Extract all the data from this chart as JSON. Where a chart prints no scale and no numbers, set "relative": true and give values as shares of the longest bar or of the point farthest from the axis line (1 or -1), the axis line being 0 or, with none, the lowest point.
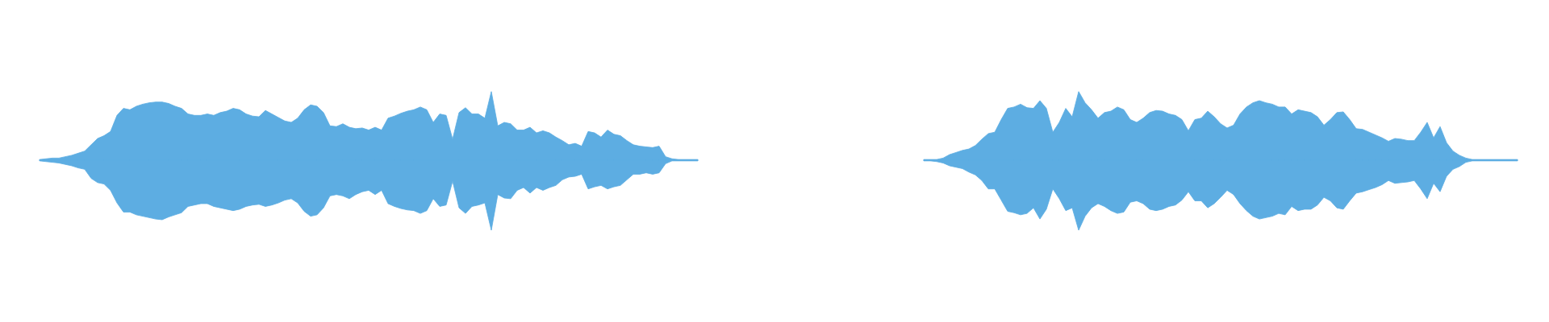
{
  "chart_data": [
    {
      "type": "area",
      "relative": true,
      "categories": [
        null,
        null,
        null,
        null,
        null,
        null,
        null,
        null,
        null,
        null,
        null,
        null,
        null,
        null,
        null,
        null,
        null,
        null,
        null,
        null,
        null,
        null,
        null,
        null,
        null,
        null,
        null,
        null,
        null,
        null,
        null,
        null,
        null,
        null,
        null,
        null,
        null,
        null,
        null,
        null,
        null,
        null,
        null,
        null,
        null,
        null,
        null,
        null,
        null,
        null,
        null,
        null,
        null,
        null,
        null,
        null,
        null,
        null,
        null,
        null,
        null,
        null,
        null,
        null,
        null,
        null,
        null,
        null,
        null,
        null,
        null,
        null,
        null,
        null,
        null,
        null,
        null,
        null,
        null,
        null,
        null,
        null,
        null,
        null,
        null,
        null,
        null,
        null,
        null,
        null,
        null,
        null,
        null,
        null,
        null,
        null,
        null,
        null,
        null,
        null,
        null,
        null,
        null
      ],
      "series": [
        {
          "color": "#5dade2",
          "values": [
            0.01,
            0.02,
            0.03,
            0.03,
            0.05,
            0.07,
            0.1,
            0.13,
            0.22,
            0.31,
            0.35,
            0.41,
            0.64,
            0.74,
            0.72,
            0.77,
            0.8,
            0.82,
            0.83,
            0.83,
            0.81,
            0.77,
            0.74,
            0.66,
            0.64,
            0.64,
            0.66,
            0.64,
            0.68,
            0.7,
            0.74,
            0.72,
            0.66,
            0.63,
            0.62,
            0.71,
            0.66,
            0.61,
            0.56,
            0.54,
            0.6,
            0.72,
            0.79,
            0.77,
            0.68,
            0.49,
            0.48,
            0.52,
            0.47,
            0.45,
            0.46,
            0.43,
            0.47,
            0.43,
            0.6,
            0.63,
            0.67,
            0.7,
            0.72,
            0.76,
            0.72,
            0.54,
            0.66,
            0.64,
            0.3,
            0.68,
            0.75,
            0.66,
            0.66,
            0.6,
            0.98,
            0.49,
            0.54,
            0.52,
            0.43,
            0.43,
            0.47,
            0.39,
            0.42,
            0.39,
            0.33,
            0.28,
            0.22,
            0.24,
            0.2,
            0.41,
            0.39,
            0.33,
            0.43,
            0.37,
            0.35,
            0.28,
            0.22,
            0.2,
            0.19,
            0.18,
            0.2,
            0.05,
            0.02,
            0.01,
            0.01,
            0.01,
            0.01
          ]
        },
        {
          "color": "#5dade2",
          "values": [
            -0.01,
            -0.02,
            -0.03,
            -0.04,
            -0.06,
            -0.08,
            -0.11,
            -0.13,
            -0.26,
            -0.32,
            -0.34,
            -0.43,
            -0.61,
            -0.74,
            -0.74,
            -0.78,
            -0.8,
            -0.82,
            -0.84,
            -0.85,
            -0.81,
            -0.78,
            -0.75,
            -0.66,
            -0.64,
            -0.62,
            -0.62,
            -0.66,
            -0.68,
            -0.7,
            -0.72,
            -0.7,
            -0.66,
            -0.64,
            -0.63,
            -0.66,
            -0.64,
            -0.61,
            -0.57,
            -0.55,
            -0.61,
            -0.73,
            -0.8,
            -0.78,
            -0.68,
            -0.51,
            -0.49,
            -0.51,
            -0.55,
            -0.49,
            -0.45,
            -0.43,
            -0.49,
            -0.43,
            -0.62,
            -0.66,
            -0.69,
            -0.71,
            -0.72,
            -0.76,
            -0.72,
            -0.55,
            -0.66,
            -0.64,
            -0.3,
            -0.68,
            -0.76,
            -0.66,
            -0.64,
            -0.61,
            -1,
            -0.49,
            -0.54,
            -0.55,
            -0.43,
            -0.39,
            -0.47,
            -0.39,
            -0.43,
            -0.39,
            -0.36,
            -0.28,
            -0.24,
            -0.23,
            -0.2,
            -0.41,
            -0.38,
            -0.36,
            -0.41,
            -0.38,
            -0.36,
            -0.28,
            -0.2,
            -0.2,
            -0.18,
            -0.2,
            -0.18,
            -0.05,
            -0.01,
            -0.01,
            -0.01,
            -0.01,
            -0.01
          ]
        }
      ]
    },
    {
      "type": "area",
      "relative": true,
      "categories": [
        null,
        null,
        null,
        null,
        null,
        null,
        null,
        null,
        null,
        null,
        null,
        null,
        null,
        null,
        null,
        null,
        null,
        null,
        null,
        null,
        null,
        null,
        null,
        null,
        null,
        null,
        null,
        null,
        null,
        null,
        null,
        null,
        null,
        null,
        null,
        null,
        null,
        null,
        null,
        null,
        null,
        null,
        null,
        null,
        null,
        null,
        null,
        null,
        null,
        null,
        null,
        null,
        null,
        null,
        null,
        null,
        null,
        null,
        null,
        null,
        null,
        null,
        null,
        null,
        null,
        null,
        null,
        null,
        null,
        null,
        null,
        null,
        null,
        null,
        null,
        null,
        null,
        null,
        null,
        null,
        null,
        null,
        null,
        null,
        null,
        null,
        null,
        null,
        null,
        null,
        null,
        null,
        null
      ],
      "series": [
        {
          "color": "#5dade2",
          "values": [
            0.01,
            0.01,
            0.01,
            0.03,
            0.08,
            0.11,
            0.14,
            0.16,
            0.21,
            0.3,
            0.38,
            0.4,
            0.58,
            0.74,
            0.76,
            0.8,
            0.75,
            0.74,
            0.85,
            0.74,
            0.4,
            0.54,
            0.74,
            0.62,
            0.98,
            0.82,
            0.72,
            0.6,
            0.68,
            0.7,
            0.76,
            0.72,
            0.58,
            0.54,
            0.6,
            0.68,
            0.71,
            0.7,
            0.66,
            0.64,
            0.58,
            0.42,
            0.58,
            0.6,
            0.7,
            0.62,
            0.52,
            0.46,
            0.5,
            0.66,
            0.76,
            0.82,
            0.85,
            0.82,
            0.8,
            0.76,
            0.76,
            0.66,
            0.72,
            0.7,
            0.68,
            0.62,
            0.5,
            0.58,
            0.68,
            0.69,
            0.58,
            0.45,
            0.44,
            0.4,
            0.36,
            0.32,
            0.27,
            0.31,
            0.3,
            0.28,
            0.28,
            0.4,
            0.54,
            0.32,
            0.48,
            0.25,
            0.13,
            0.07,
            0.03,
            0.01,
            0.01,
            0.01,
            0.01,
            0.01,
            0.01,
            0.01,
            0.01
          ]
        },
        {
          "color": "#5dade2",
          "values": [
            -0.01,
            -0.01,
            -0.02,
            -0.04,
            -0.08,
            -0.1,
            -0.12,
            -0.17,
            -0.21,
            -0.29,
            -0.41,
            -0.41,
            -0.57,
            -0.73,
            -0.75,
            -0.78,
            -0.76,
            -0.68,
            -0.84,
            -0.7,
            -0.41,
            -0.55,
            -0.72,
            -0.68,
            -1,
            -0.8,
            -0.68,
            -0.62,
            -0.66,
            -0.72,
            -0.76,
            -0.74,
            -0.6,
            -0.58,
            -0.62,
            -0.7,
            -0.72,
            -0.7,
            -0.66,
            -0.64,
            -0.57,
            -0.45,
            -0.58,
            -0.58,
            -0.68,
            -0.62,
            -0.53,
            -0.43,
            -0.49,
            -0.62,
            -0.72,
            -0.8,
            -0.84,
            -0.82,
            -0.8,
            -0.76,
            -0.78,
            -0.66,
            -0.72,
            -0.7,
            -0.7,
            -0.64,
            -0.53,
            -0.58,
            -0.68,
            -0.7,
            -0.58,
            -0.47,
            -0.45,
            -0.42,
            -0.39,
            -0.35,
            -0.29,
            -0.33,
            -0.32,
            -0.31,
            -0.29,
            -0.41,
            -0.55,
            -0.33,
            -0.45,
            -0.23,
            -0.13,
            -0.09,
            -0.03,
            -0.01,
            -0.01,
            -0.01,
            -0.01,
            -0.01,
            -0.01,
            -0.01,
            -0.01
          ]
        }
      ]
    }
  ]
}
